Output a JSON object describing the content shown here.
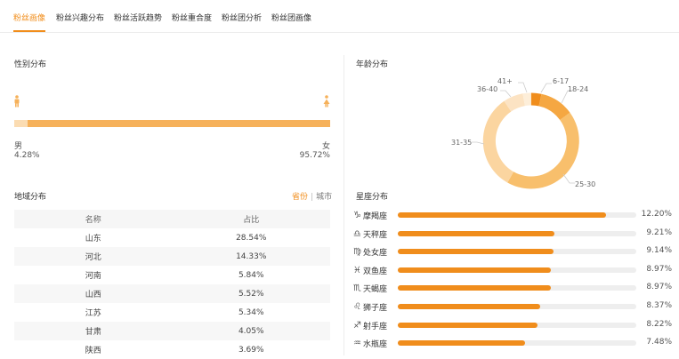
{
  "tabs": [
    {
      "label": "粉丝画像",
      "active": true
    },
    {
      "label": "粉丝兴趣分布",
      "active": false
    },
    {
      "label": "粉丝活跃趋势",
      "active": false
    },
    {
      "label": "粉丝重合度",
      "active": false
    },
    {
      "label": "粉丝团分析",
      "active": false
    },
    {
      "label": "粉丝团画像",
      "active": false
    }
  ],
  "gender": {
    "title": "性别分布",
    "male_label": "男",
    "female_label": "女",
    "male_pct": "4.28%",
    "female_pct": "95.72%",
    "male_value": 4.28,
    "female_value": 95.72,
    "male_color": "#fbdcb2",
    "female_color": "#f6b15a"
  },
  "age": {
    "title": "年龄分布",
    "slices": [
      {
        "label": "6-17",
        "color": "#f08d1c"
      },
      {
        "label": "18-24",
        "color": "#f5a742"
      },
      {
        "label": "25-30",
        "color": "#f8bf6c"
      },
      {
        "label": "31-35",
        "color": "#fbd5a0"
      },
      {
        "label": "36-40",
        "color": "#fce3c3"
      },
      {
        "label": "41+",
        "color": "#fdeed9"
      }
    ]
  },
  "region": {
    "title": "地域分布",
    "toggle_province": "省份",
    "toggle_separator": "|",
    "toggle_city": "城市",
    "columns": [
      "名称",
      "占比"
    ],
    "rows": [
      {
        "name": "山东",
        "pct": "28.54%"
      },
      {
        "name": "河北",
        "pct": "14.33%"
      },
      {
        "name": "河南",
        "pct": "5.84%"
      },
      {
        "name": "山西",
        "pct": "5.52%"
      },
      {
        "name": "江苏",
        "pct": "5.34%"
      },
      {
        "name": "甘肃",
        "pct": "4.05%"
      },
      {
        "name": "陕西",
        "pct": "3.69%"
      }
    ]
  },
  "zodiac": {
    "title": "星座分布",
    "bar_color": "#f08d1c",
    "track_color": "#eeeeee",
    "items": [
      {
        "icon": "capricorn-icon",
        "glyph": "♑",
        "name": "摩羯座",
        "pct": "12.20%",
        "value": 12.2
      },
      {
        "icon": "libra-icon",
        "glyph": "♎",
        "name": "天秤座",
        "pct": "9.21%",
        "value": 9.21
      },
      {
        "icon": "virgo-icon",
        "glyph": "♍",
        "name": "处女座",
        "pct": "9.14%",
        "value": 9.14
      },
      {
        "icon": "pisces-icon",
        "glyph": "♓",
        "name": "双鱼座",
        "pct": "8.97%",
        "value": 8.97
      },
      {
        "icon": "scorpio-icon",
        "glyph": "♏",
        "name": "天蝎座",
        "pct": "8.97%",
        "value": 8.97
      },
      {
        "icon": "leo-icon",
        "glyph": "♌",
        "name": "狮子座",
        "pct": "8.37%",
        "value": 8.37
      },
      {
        "icon": "sagittarius-icon",
        "glyph": "♐",
        "name": "射手座",
        "pct": "8.22%",
        "value": 8.22
      },
      {
        "icon": "aquarius-icon",
        "glyph": "♒",
        "name": "水瓶座",
        "pct": "7.48%",
        "value": 7.48
      }
    ]
  }
}
